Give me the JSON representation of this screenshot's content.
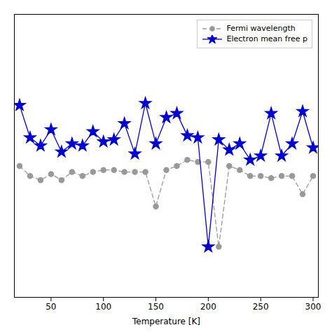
{
  "chart_data": {
    "type": "line",
    "xlabel": "Temperature [K]",
    "x": [
      20,
      30,
      40,
      50,
      60,
      70,
      80,
      90,
      100,
      110,
      120,
      130,
      140,
      150,
      160,
      170,
      180,
      190,
      200,
      210,
      220,
      230,
      240,
      250,
      260,
      270,
      280,
      290,
      300
    ],
    "series": [
      {
        "name": "Fermi wavelength",
        "color": "#999999",
        "line_style": "dashed",
        "marker": "circle",
        "values": [
          5.5,
          5.0,
          4.8,
          5.1,
          4.8,
          5.2,
          5.0,
          5.2,
          5.3,
          5.3,
          5.2,
          5.2,
          5.2,
          3.5,
          5.3,
          5.5,
          5.8,
          5.7,
          5.7,
          1.5,
          5.5,
          5.3,
          5.0,
          5.0,
          4.9,
          5.0,
          5.0,
          4.1,
          5.0
        ]
      },
      {
        "name": "Electron mean free p",
        "color": "#0000cc",
        "line_style": "solid",
        "marker": "star",
        "values": [
          8.5,
          6.9,
          6.5,
          7.3,
          6.2,
          6.6,
          6.5,
          7.2,
          6.7,
          6.8,
          7.6,
          6.1,
          8.6,
          6.6,
          7.9,
          8.1,
          7.0,
          6.9,
          1.5,
          6.8,
          6.3,
          6.6,
          5.8,
          6.0,
          8.1,
          6.0,
          6.6,
          8.2,
          6.4
        ]
      }
    ],
    "xlim": [
      15,
      305
    ],
    "xticks": [
      50,
      100,
      150,
      200,
      250,
      300
    ],
    "ylim": [
      -1.0,
      13.0
    ],
    "legend": "upper right",
    "tick_labels": "x",
    "grid": false
  }
}
